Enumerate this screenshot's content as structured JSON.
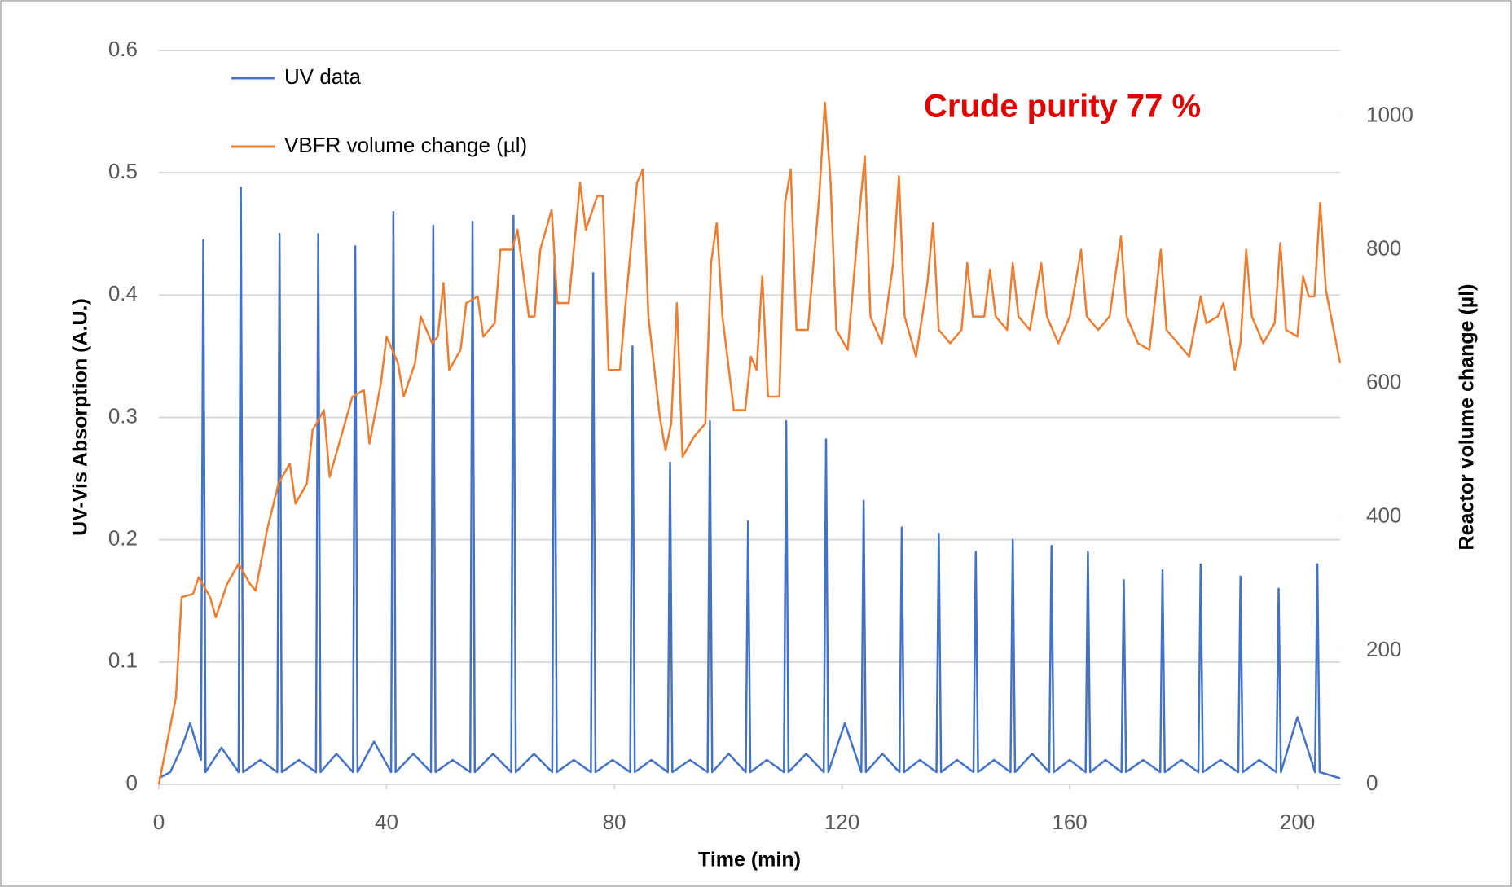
{
  "chart_data": {
    "type": "line",
    "xlabel": "Time (min)",
    "ylabel": "UV-Vis Absorption (A.U.)",
    "y2label": "Reactor volume change (µl)",
    "annotation": "Crude purity 77 %",
    "annotation_color": "#e00000",
    "xlim": [
      0,
      207.5
    ],
    "xticks": [
      0,
      40,
      80,
      120,
      160,
      200
    ],
    "ylim": [
      0,
      0.6
    ],
    "yticks": [
      0,
      0.1,
      0.2,
      0.3,
      0.4,
      0.5,
      0.6
    ],
    "y2lim": [
      0,
      1098
    ],
    "y2ticks": [
      0,
      200,
      400,
      600,
      800,
      1000
    ],
    "grid": true,
    "legend": "upper left",
    "series": [
      {
        "name": "UV data",
        "color": "#4472c4",
        "axis": "y",
        "x": [
          0,
          2,
          4,
          5.5,
          7.4,
          7.8,
          8.2,
          11,
          14.0,
          14.4,
          14.8,
          17.8,
          20.8,
          21.2,
          21.6,
          24.6,
          27.6,
          28,
          28.4,
          31.2,
          34.1,
          34.5,
          34.9,
          37.8,
          40.8,
          41.2,
          41.6,
          44.7,
          47.8,
          48.2,
          48.6,
          51.6,
          54.7,
          55.1,
          55.5,
          58.7,
          61.9,
          62.3,
          62.7,
          65.9,
          69.1,
          69.5,
          69.9,
          72.9,
          75.9,
          76.3,
          76.7,
          79.7,
          82.8,
          83.2,
          83.6,
          86.5,
          89.4,
          89.8,
          90.2,
          93.3,
          96.4,
          96.8,
          97.2,
          100.1,
          103.1,
          103.5,
          103.9,
          106.8,
          109.8,
          110.2,
          110.6,
          113.7,
          116.8,
          117.2,
          117.6,
          120.5,
          123.4,
          123.8,
          124.2,
          127.1,
          130.1,
          130.5,
          130.9,
          133.7,
          136.6,
          137,
          137.4,
          140.2,
          143.1,
          143.5,
          143.9,
          146.7,
          149.6,
          150,
          150.4,
          153.4,
          156.4,
          156.8,
          157.2,
          160,
          162.8,
          163.2,
          163.6,
          166.3,
          169.1,
          169.5,
          169.9,
          172.9,
          175.9,
          176.3,
          176.7,
          179.6,
          182.6,
          183,
          183.4,
          186.5,
          189.6,
          190,
          190.4,
          193.3,
          196.3,
          196.7,
          197.1,
          200,
          203.1,
          203.5,
          203.9,
          207.5
        ],
        "values": [
          0.005,
          0.01,
          0.03,
          0.05,
          0.02,
          0.445,
          0.01,
          0.03,
          0.01,
          0.488,
          0.01,
          0.02,
          0.01,
          0.45,
          0.01,
          0.02,
          0.01,
          0.45,
          0.01,
          0.025,
          0.01,
          0.44,
          0.01,
          0.035,
          0.01,
          0.468,
          0.01,
          0.025,
          0.01,
          0.457,
          0.01,
          0.02,
          0.01,
          0.46,
          0.01,
          0.025,
          0.01,
          0.465,
          0.01,
          0.025,
          0.01,
          0.43,
          0.01,
          0.02,
          0.01,
          0.418,
          0.01,
          0.02,
          0.01,
          0.358,
          0.01,
          0.02,
          0.01,
          0.263,
          0.01,
          0.02,
          0.01,
          0.297,
          0.01,
          0.025,
          0.01,
          0.215,
          0.01,
          0.02,
          0.01,
          0.297,
          0.01,
          0.025,
          0.01,
          0.282,
          0.01,
          0.05,
          0.01,
          0.232,
          0.01,
          0.025,
          0.01,
          0.21,
          0.01,
          0.02,
          0.01,
          0.205,
          0.01,
          0.02,
          0.01,
          0.19,
          0.01,
          0.02,
          0.01,
          0.2,
          0.01,
          0.025,
          0.01,
          0.195,
          0.01,
          0.02,
          0.01,
          0.19,
          0.01,
          0.02,
          0.01,
          0.167,
          0.01,
          0.02,
          0.01,
          0.175,
          0.01,
          0.02,
          0.01,
          0.18,
          0.01,
          0.02,
          0.01,
          0.17,
          0.01,
          0.02,
          0.01,
          0.16,
          0.01,
          0.055,
          0.01,
          0.18,
          0.01,
          0.005
        ]
      },
      {
        "name": "VBFR volume change (µl)",
        "color": "#ed7d31",
        "axis": "y2",
        "x": [
          0,
          3,
          4,
          6,
          7,
          9,
          10,
          12,
          14,
          16,
          17,
          19,
          21,
          23,
          24,
          26,
          27,
          29,
          30,
          32,
          34,
          36,
          37,
          39,
          40,
          42,
          43,
          45,
          46,
          48,
          49,
          50,
          51,
          53,
          54,
          56,
          57,
          59,
          60,
          62,
          63,
          65,
          66,
          67,
          69,
          70,
          72,
          74,
          75,
          77,
          78,
          79,
          81,
          82,
          84,
          85,
          86,
          88,
          89,
          90,
          91,
          92,
          94,
          96,
          97,
          98,
          99,
          101,
          103,
          104,
          105,
          106,
          107,
          109,
          110,
          111,
          112,
          114,
          116,
          117,
          118,
          119,
          121,
          123,
          124,
          125,
          127,
          129,
          130,
          131,
          133,
          135,
          136,
          137,
          139,
          141,
          142,
          143,
          145,
          146,
          147,
          149,
          150,
          151,
          153,
          155,
          156,
          158,
          160,
          162,
          163,
          165,
          167,
          169,
          170,
          172,
          174,
          176,
          177,
          179,
          181,
          183,
          184,
          186,
          187,
          189,
          190,
          191,
          192,
          194,
          196,
          197,
          198,
          200,
          201,
          202,
          203,
          204,
          205,
          207.5
        ],
        "values": [
          0,
          130,
          280,
          285,
          310,
          280,
          250,
          300,
          330,
          300,
          290,
          380,
          450,
          480,
          420,
          450,
          530,
          560,
          460,
          520,
          580,
          590,
          510,
          600,
          670,
          630,
          580,
          630,
          700,
          660,
          670,
          750,
          620,
          650,
          720,
          730,
          670,
          690,
          800,
          800,
          830,
          700,
          700,
          800,
          860,
          720,
          720,
          900,
          830,
          880,
          880,
          620,
          620,
          720,
          900,
          920,
          700,
          550,
          500,
          540,
          720,
          490,
          520,
          540,
          780,
          840,
          700,
          560,
          560,
          640,
          620,
          760,
          580,
          580,
          870,
          920,
          680,
          680,
          880,
          1020,
          900,
          680,
          650,
          850,
          940,
          700,
          660,
          780,
          910,
          700,
          640,
          750,
          840,
          680,
          660,
          680,
          780,
          700,
          700,
          770,
          700,
          680,
          780,
          700,
          680,
          780,
          700,
          660,
          700,
          800,
          700,
          680,
          700,
          820,
          700,
          660,
          650,
          800,
          680,
          660,
          640,
          730,
          690,
          700,
          720,
          620,
          660,
          800,
          700,
          660,
          690,
          810,
          680,
          670,
          760,
          730,
          730,
          870,
          740,
          630
        ]
      }
    ]
  }
}
